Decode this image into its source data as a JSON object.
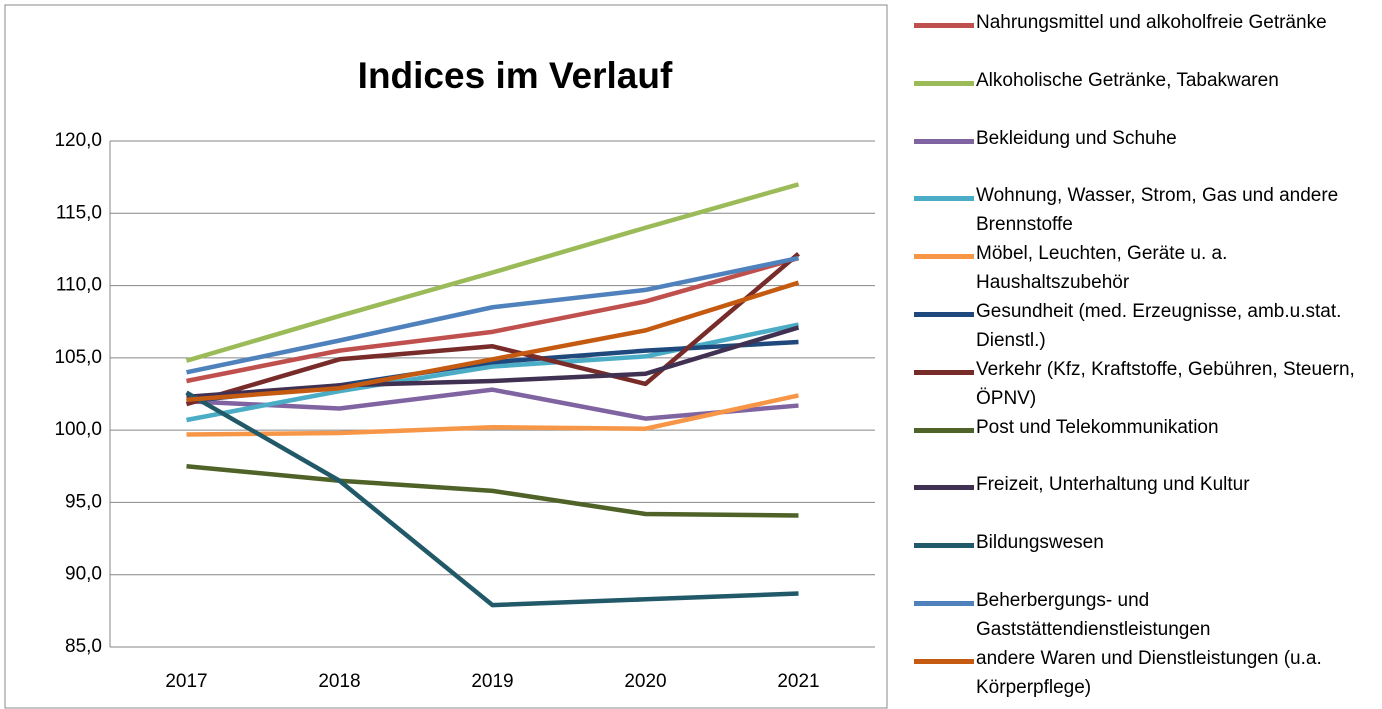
{
  "chart_data": {
    "type": "line",
    "title": "Indices im Verlauf",
    "categories": [
      "2017",
      "2018",
      "2019",
      "2020",
      "2021"
    ],
    "ylim": [
      85,
      120
    ],
    "yticks": [
      {
        "value": 85,
        "label": "85,0"
      },
      {
        "value": 90,
        "label": "90,0"
      },
      {
        "value": 95,
        "label": "95,0"
      },
      {
        "value": 100,
        "label": "100,0"
      },
      {
        "value": 105,
        "label": "105,0"
      },
      {
        "value": 110,
        "label": "110,0"
      },
      {
        "value": 115,
        "label": "115,0"
      },
      {
        "value": 120,
        "label": "120,0"
      }
    ],
    "grid": true,
    "legend": "right",
    "series": [
      {
        "name": "Nahrungsmittel und alkoholfreie Getränke",
        "color": "#c0504d",
        "values": [
          103.4,
          105.5,
          106.8,
          108.9,
          111.9
        ]
      },
      {
        "name": "Alkoholische Getränke, Tabakwaren",
        "color": "#9bbb59",
        "values": [
          104.8,
          107.9,
          110.9,
          114.0,
          117.0
        ]
      },
      {
        "name": "Bekleidung und Schuhe",
        "color": "#8064a2",
        "values": [
          102.0,
          101.5,
          102.8,
          100.8,
          101.7
        ]
      },
      {
        "name": "Wohnung, Wasser, Strom, Gas und andere Brennstoffe",
        "color": "#4bacc6",
        "values": [
          100.7,
          102.7,
          104.4,
          105.1,
          107.3
        ]
      },
      {
        "name": "Möbel, Leuchten, Geräte u. a. Haushaltszubehör",
        "color": "#f79646",
        "values": [
          99.7,
          99.8,
          100.2,
          100.1,
          102.4
        ]
      },
      {
        "name": "Gesundheit (med. Erzeugnisse, amb.u.stat. Dienstl.)",
        "color": "#1f497d",
        "values": [
          102.0,
          103.1,
          104.7,
          105.5,
          106.1
        ]
      },
      {
        "name": "Verkehr (Kfz, Kraftstoffe, Gebühren, Steuern, ÖPNV)",
        "color": "#772c2a",
        "values": [
          101.8,
          104.9,
          105.8,
          103.2,
          112.2
        ]
      },
      {
        "name": "Post und Telekommunikation",
        "color": "#4f6228",
        "values": [
          97.5,
          96.5,
          95.8,
          94.2,
          94.1
        ]
      },
      {
        "name": "Freizeit, Unterhaltung und Kultur",
        "color": "#403152",
        "values": [
          102.3,
          103.1,
          103.4,
          103.9,
          107.1
        ]
      },
      {
        "name": "Bildungswesen",
        "color": "#215968",
        "values": [
          102.6,
          96.5,
          87.9,
          88.3,
          88.7
        ]
      },
      {
        "name": "Beherbergungs- und Gaststättendienstleistungen",
        "color": "#4f81bd",
        "values": [
          104.0,
          106.2,
          108.5,
          109.7,
          111.9
        ]
      },
      {
        "name": "andere Waren und Dienstleistungen (u.a. Körperpflege)",
        "color": "#c55a11",
        "values": [
          102.1,
          102.9,
          104.9,
          106.9,
          110.2
        ]
      }
    ]
  }
}
